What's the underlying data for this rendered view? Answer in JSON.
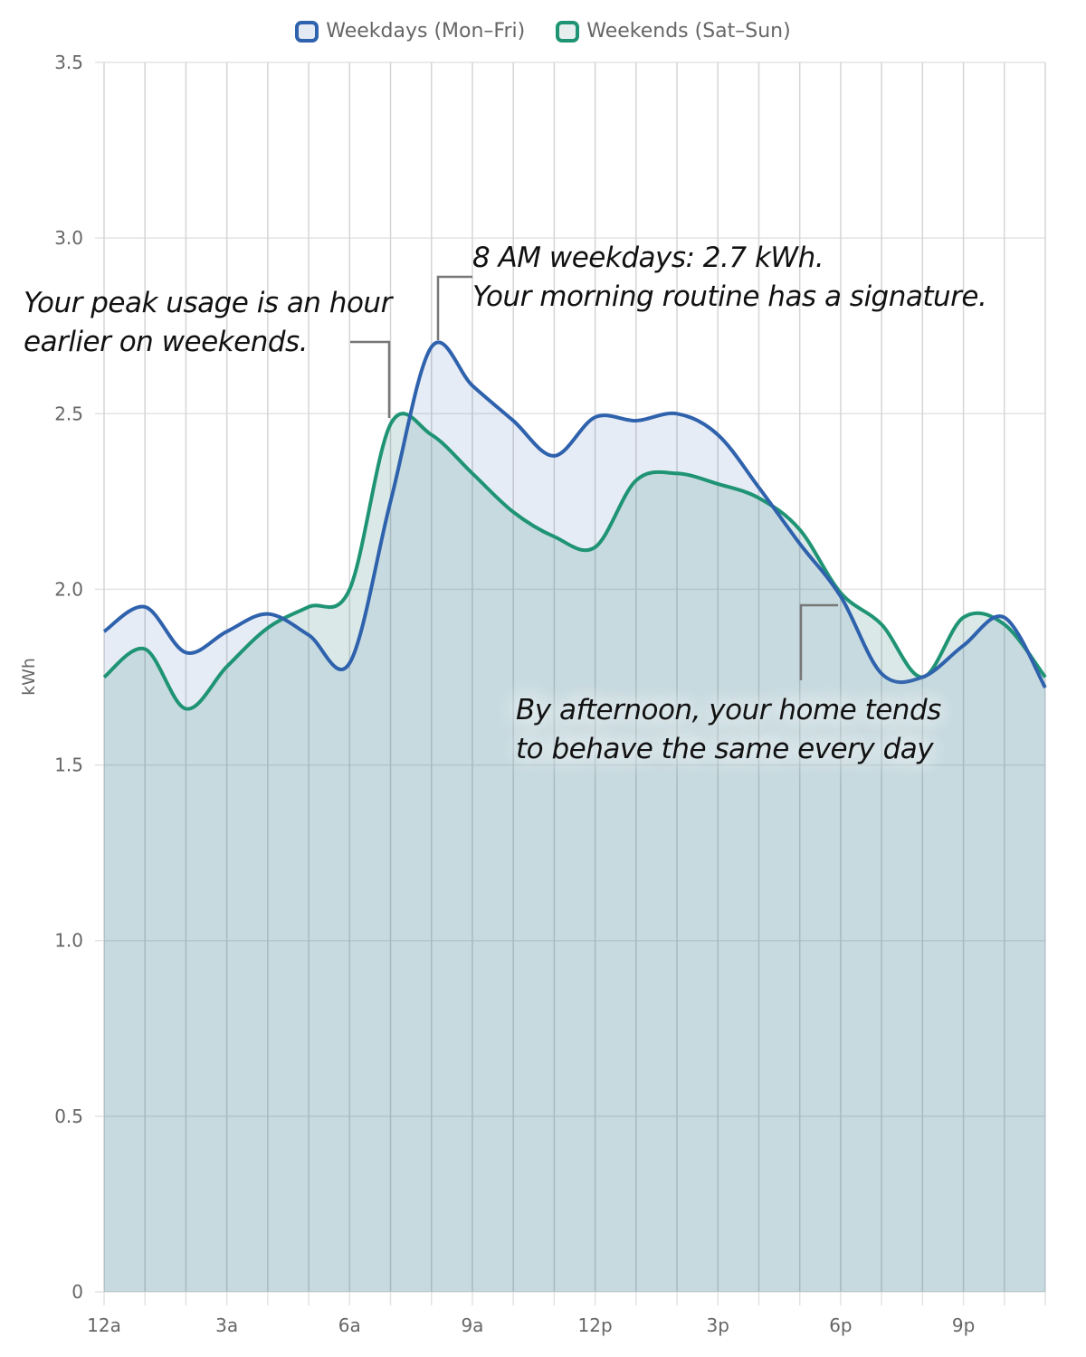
{
  "chart_data": {
    "type": "area",
    "title": "",
    "xlabel": "",
    "ylabel": "kWh",
    "ylim": [
      0,
      3.5
    ],
    "yticks": [
      "0",
      "0.5",
      "1.0",
      "1.5",
      "2.0",
      "2.5",
      "3.0",
      "3.5"
    ],
    "x": [
      0,
      1,
      2,
      3,
      4,
      5,
      6,
      7,
      8,
      9,
      10,
      11,
      12,
      13,
      14,
      15,
      16,
      17,
      18,
      19,
      20,
      21,
      22,
      23
    ],
    "xtick_labels": [
      {
        "hour": 0,
        "label": "12a"
      },
      {
        "hour": 3,
        "label": "3a"
      },
      {
        "hour": 6,
        "label": "6a"
      },
      {
        "hour": 9,
        "label": "9a"
      },
      {
        "hour": 12,
        "label": "12p"
      },
      {
        "hour": 15,
        "label": "3p"
      },
      {
        "hour": 18,
        "label": "6p"
      },
      {
        "hour": 21,
        "label": "9p"
      }
    ],
    "grid": true,
    "legend": "top-center",
    "series": [
      {
        "name": "Weekdays (Mon–Fri)",
        "color": "#2f62ad",
        "fill": "#e4eaf4",
        "values": [
          1.88,
          1.95,
          1.82,
          1.88,
          1.93,
          1.87,
          1.79,
          2.25,
          2.69,
          2.58,
          2.48,
          2.38,
          2.49,
          2.48,
          2.5,
          2.44,
          2.29,
          2.13,
          1.98,
          1.76,
          1.75,
          1.84,
          1.92,
          1.72
        ]
      },
      {
        "name": "Weekends (Sat–Sun)",
        "color": "#1f9474",
        "fill": "#e6efee",
        "values": [
          1.75,
          1.83,
          1.66,
          1.78,
          1.89,
          1.95,
          2.0,
          2.47,
          2.44,
          2.33,
          2.22,
          2.15,
          2.12,
          2.31,
          2.33,
          2.3,
          2.26,
          2.17,
          1.99,
          1.9,
          1.75,
          1.92,
          1.9,
          1.75
        ]
      }
    ],
    "annotations": [
      {
        "text": [
          "Your peak usage is an hour",
          "earlier on weekends."
        ],
        "hour": 7
      },
      {
        "text": [
          "8 AM weekdays: 2.7 kWh.",
          "Your morning routine has a signature."
        ],
        "hour": 8
      },
      {
        "text": [
          "By afternoon, your home tends",
          "to behave the same every day"
        ],
        "hour": 17
      }
    ]
  }
}
